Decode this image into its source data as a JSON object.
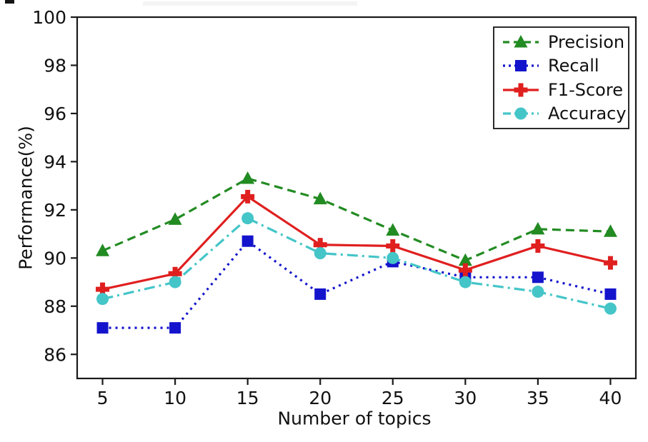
{
  "figure": {
    "background": "#ffffff",
    "axis_color": "#1a1a1a",
    "text_color": "#111111"
  },
  "legend": {
    "border_color": "#2b2b2b",
    "background": "#ffffff",
    "position": "upper-right"
  },
  "chart_data": {
    "type": "line",
    "title": "",
    "xlabel": "Number of topics",
    "ylabel": "Performance(%)",
    "x": [
      5,
      10,
      15,
      20,
      25,
      30,
      35,
      40
    ],
    "xticks": [
      "5",
      "10",
      "15",
      "20",
      "25",
      "30",
      "35",
      "40"
    ],
    "yticks": [
      "86",
      "88",
      "90",
      "92",
      "94",
      "96",
      "98",
      "100"
    ],
    "ytick_values": [
      86,
      88,
      90,
      92,
      94,
      96,
      98,
      100
    ],
    "xlim": [
      3.25,
      41.75
    ],
    "ylim": [
      85,
      100
    ],
    "grid": false,
    "legend_position": "upper right",
    "series": [
      {
        "name": "Precision",
        "color": "#228B22",
        "linestyle": "dashed",
        "marker": "triangle-up",
        "values": [
          90.3,
          91.6,
          93.3,
          92.45,
          91.15,
          89.9,
          91.2,
          91.1
        ]
      },
      {
        "name": "Recall",
        "color": "#1414CC",
        "linestyle": "dotted",
        "marker": "square",
        "values": [
          87.1,
          87.1,
          90.7,
          88.5,
          89.85,
          89.2,
          89.2,
          88.5
        ]
      },
      {
        "name": "F1-Score",
        "color": "#E01F1F",
        "linestyle": "solid",
        "marker": "plus",
        "values": [
          88.7,
          89.35,
          92.55,
          90.55,
          90.5,
          89.5,
          90.5,
          89.8
        ]
      },
      {
        "name": "Accuracy",
        "color": "#44C5C8",
        "linestyle": "dashdot",
        "marker": "circle",
        "values": [
          88.3,
          89.0,
          91.65,
          90.2,
          90.0,
          89.0,
          88.6,
          87.9
        ]
      }
    ]
  }
}
